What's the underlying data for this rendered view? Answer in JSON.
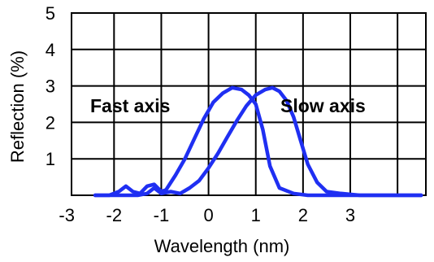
{
  "chart_data": {
    "type": "line",
    "xlabel": "Wavelength (nm)",
    "ylabel": "Reflection (%)",
    "xlim": [
      -2.9,
      4.6
    ],
    "ylim": [
      0,
      5
    ],
    "grid": true,
    "x_ticks": [
      "-3",
      "-2",
      "-1",
      "0",
      "1",
      "2",
      "3"
    ],
    "y_ticks": [
      "1",
      "2",
      "3",
      "4",
      "5"
    ],
    "line_color": "#1f2ff2",
    "annotations": [
      "Fast axis",
      "Slow axis"
    ],
    "series": [
      {
        "name": "Fast axis",
        "x": [
          -2.4,
          -2.1,
          -1.9,
          -1.75,
          -1.6,
          -1.45,
          -1.3,
          -1.15,
          -1.0,
          -0.9,
          -0.7,
          -0.5,
          -0.3,
          -0.1,
          0.1,
          0.3,
          0.5,
          0.7,
          0.85,
          1.0,
          1.15,
          1.3,
          1.5,
          1.8,
          2.1,
          2.5,
          3.0,
          4.5
        ],
        "y": [
          0,
          0,
          0.1,
          0.25,
          0.1,
          0.05,
          0.25,
          0.3,
          0.1,
          0.15,
          0.55,
          1.0,
          1.55,
          2.1,
          2.55,
          2.8,
          2.95,
          2.9,
          2.75,
          2.5,
          1.8,
          0.8,
          0.2,
          0.05,
          0,
          0,
          0,
          0
        ]
      },
      {
        "name": "Slow axis",
        "x": [
          -2.4,
          -1.5,
          -1.3,
          -1.15,
          -1.0,
          -0.8,
          -0.6,
          -0.4,
          -0.2,
          0.0,
          0.2,
          0.4,
          0.6,
          0.8,
          1.0,
          1.2,
          1.35,
          1.5,
          1.65,
          1.8,
          1.95,
          2.1,
          2.3,
          2.5,
          2.8,
          3.2,
          4.5
        ],
        "y": [
          0,
          0,
          0.05,
          0.2,
          0.05,
          0.1,
          0.05,
          0.2,
          0.4,
          0.75,
          1.15,
          1.6,
          2.05,
          2.45,
          2.75,
          2.9,
          2.95,
          2.85,
          2.6,
          2.15,
          1.5,
          0.85,
          0.35,
          0.1,
          0.05,
          0,
          0
        ]
      }
    ]
  }
}
